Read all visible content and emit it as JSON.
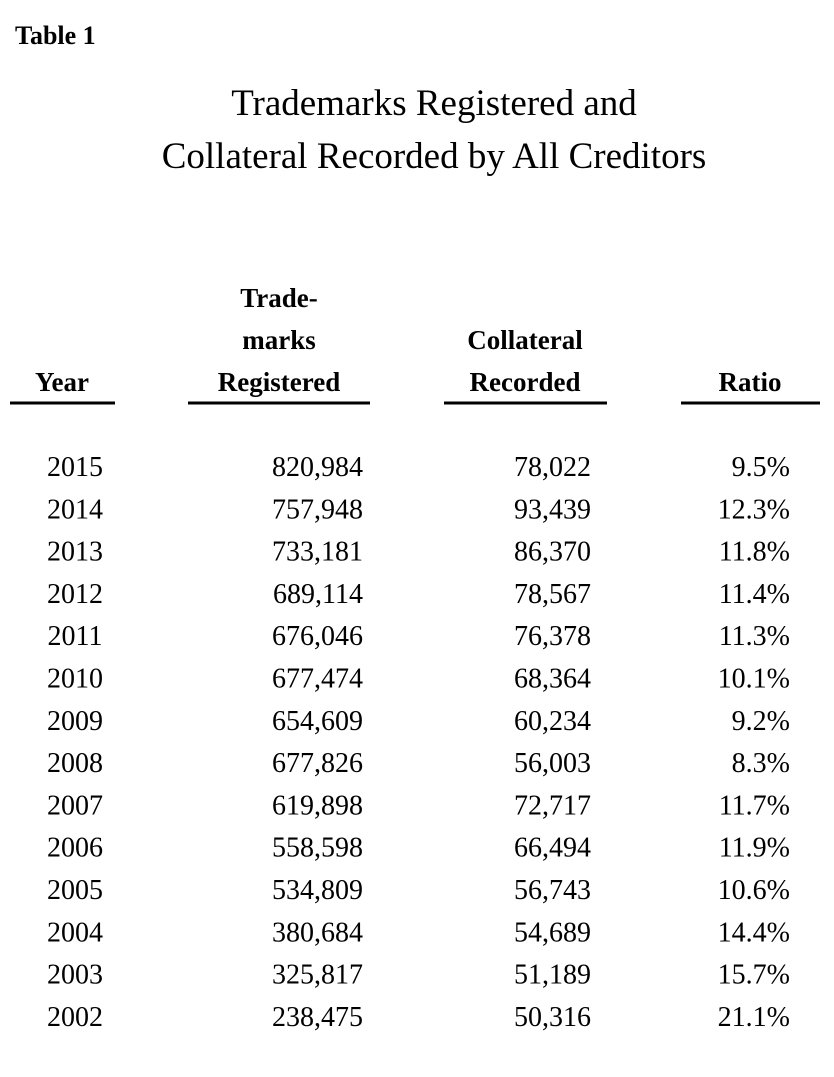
{
  "label": "Table 1",
  "title": [
    "Trademarks Registered and",
    "Collateral Recorded by All Creditors"
  ],
  "table": {
    "headers": [
      [
        "Year"
      ],
      [
        "Trade-",
        "marks",
        "Registered"
      ],
      [
        "Collateral",
        "Recorded"
      ],
      [
        "Ratio"
      ]
    ],
    "rows": [
      [
        "2015",
        "820,984",
        "78,022",
        "9.5%"
      ],
      [
        "2014",
        "757,948",
        "93,439",
        "12.3%"
      ],
      [
        "2013",
        "733,181",
        "86,370",
        "11.8%"
      ],
      [
        "2012",
        "689,114",
        "78,567",
        "11.4%"
      ],
      [
        "2011",
        "676,046",
        "76,378",
        "11.3%"
      ],
      [
        "2010",
        "677,474",
        "68,364",
        "10.1%"
      ],
      [
        "2009",
        "654,609",
        "60,234",
        "9.2%"
      ],
      [
        "2008",
        "677,826",
        "56,003",
        "8.3%"
      ],
      [
        "2007",
        "619,898",
        "72,717",
        "11.7%"
      ],
      [
        "2006",
        "558,598",
        "66,494",
        "11.9%"
      ],
      [
        "2005",
        "534,809",
        "56,743",
        "10.6%"
      ],
      [
        "2004",
        "380,684",
        "54,689",
        "14.4%"
      ],
      [
        "2003",
        "325,817",
        "51,189",
        "15.7%"
      ],
      [
        "2002",
        "238,475",
        "50,316",
        "21.1%"
      ]
    ]
  }
}
